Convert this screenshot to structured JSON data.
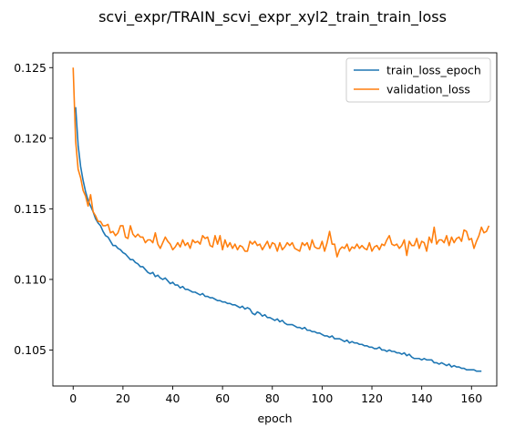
{
  "chart_data": {
    "type": "line",
    "title": "scvi_expr/TRAIN_scvi_expr_xyl2_train_train_loss",
    "xlabel": "epoch",
    "ylabel": "",
    "xlim": [
      -8.15,
      170.15
    ],
    "ylim": [
      0.10245,
      0.12605
    ],
    "xticks": [
      0,
      20,
      40,
      60,
      80,
      100,
      120,
      140,
      160
    ],
    "yticks": [
      0.105,
      0.11,
      0.115,
      0.12,
      0.125
    ],
    "grid": false,
    "legend": "top-right",
    "series": [
      {
        "name": "train_loss_epoch",
        "color": "#1f77b4",
        "x_start": 1,
        "values": [
          0.1222,
          0.1195,
          0.118,
          0.117,
          0.1162,
          0.1156,
          0.1152,
          0.1148,
          0.1143,
          0.114,
          0.1138,
          0.1134,
          0.1131,
          0.113,
          0.1127,
          0.1124,
          0.1124,
          0.1122,
          0.1121,
          0.1119,
          0.1118,
          0.1116,
          0.1114,
          0.1114,
          0.1112,
          0.1111,
          0.1109,
          0.1109,
          0.1107,
          0.1105,
          0.1104,
          0.1105,
          0.1102,
          0.1103,
          0.1101,
          0.11,
          0.1101,
          0.1099,
          0.1097,
          0.1098,
          0.1096,
          0.1096,
          0.1094,
          0.1095,
          0.1093,
          0.1093,
          0.1092,
          0.1091,
          0.1091,
          0.109,
          0.1089,
          0.109,
          0.1088,
          0.1088,
          0.1087,
          0.1087,
          0.1086,
          0.1085,
          0.1085,
          0.1084,
          0.1084,
          0.1083,
          0.1083,
          0.1082,
          0.1082,
          0.1081,
          0.108,
          0.1081,
          0.1079,
          0.108,
          0.1079,
          0.1076,
          0.1075,
          0.1077,
          0.1076,
          0.1074,
          0.1075,
          0.1073,
          0.1073,
          0.1072,
          0.1071,
          0.1072,
          0.107,
          0.1071,
          0.1069,
          0.1068,
          0.1068,
          0.1068,
          0.1067,
          0.1066,
          0.1066,
          0.1065,
          0.1066,
          0.1064,
          0.1064,
          0.1063,
          0.1063,
          0.1062,
          0.1062,
          0.1061,
          0.106,
          0.106,
          0.1059,
          0.106,
          0.1058,
          0.1058,
          0.1058,
          0.1057,
          0.1056,
          0.1057,
          0.1055,
          0.1056,
          0.1055,
          0.1055,
          0.1054,
          0.1054,
          0.1053,
          0.1053,
          0.1052,
          0.1052,
          0.1051,
          0.1051,
          0.1052,
          0.105,
          0.105,
          0.1049,
          0.105,
          0.1049,
          0.1049,
          0.1048,
          0.1048,
          0.1047,
          0.1048,
          0.1046,
          0.1047,
          0.1045,
          0.1044,
          0.1044,
          0.1044,
          0.1043,
          0.1044,
          0.1043,
          0.1043,
          0.1043,
          0.1041,
          0.1041,
          0.104,
          0.1041,
          0.104,
          0.1039,
          0.104,
          0.1038,
          0.1039,
          0.1038,
          0.1038,
          0.1037,
          0.1037,
          0.1036,
          0.1036,
          0.1036,
          0.1036,
          0.1035,
          0.1035,
          0.1035
        ]
      },
      {
        "name": "validation_loss",
        "color": "#ff7f0e",
        "x_start": 0,
        "values": [
          0.125,
          0.1198,
          0.1178,
          0.1172,
          0.1163,
          0.1159,
          0.1152,
          0.116,
          0.1148,
          0.1145,
          0.1141,
          0.1141,
          0.1138,
          0.1138,
          0.1139,
          0.1133,
          0.1134,
          0.1131,
          0.1133,
          0.1138,
          0.1138,
          0.113,
          0.1129,
          0.1138,
          0.1132,
          0.113,
          0.1132,
          0.113,
          0.113,
          0.1126,
          0.1128,
          0.1128,
          0.1126,
          0.1133,
          0.1125,
          0.1122,
          0.1126,
          0.113,
          0.1127,
          0.1125,
          0.1121,
          0.1123,
          0.1126,
          0.1123,
          0.1128,
          0.1124,
          0.1126,
          0.1122,
          0.1128,
          0.1126,
          0.1127,
          0.1125,
          0.1131,
          0.1129,
          0.113,
          0.1124,
          0.1123,
          0.1131,
          0.1125,
          0.1131,
          0.1121,
          0.1128,
          0.1123,
          0.1126,
          0.1122,
          0.1125,
          0.1121,
          0.1124,
          0.1123,
          0.112,
          0.112,
          0.1127,
          0.1125,
          0.1127,
          0.1124,
          0.1125,
          0.1121,
          0.1124,
          0.1127,
          0.1122,
          0.1126,
          0.1125,
          0.112,
          0.1126,
          0.1121,
          0.1123,
          0.1126,
          0.1124,
          0.1126,
          0.1122,
          0.1121,
          0.112,
          0.1126,
          0.1124,
          0.1126,
          0.1121,
          0.1128,
          0.1123,
          0.1122,
          0.1122,
          0.1127,
          0.112,
          0.1126,
          0.1134,
          0.1125,
          0.1125,
          0.1116,
          0.1121,
          0.1123,
          0.1122,
          0.1125,
          0.112,
          0.1123,
          0.1122,
          0.1125,
          0.1122,
          0.1124,
          0.1122,
          0.1121,
          0.1126,
          0.112,
          0.1123,
          0.1124,
          0.1121,
          0.1125,
          0.1124,
          0.1128,
          0.1131,
          0.1125,
          0.1124,
          0.1125,
          0.1122,
          0.1124,
          0.1128,
          0.1117,
          0.1127,
          0.1124,
          0.1124,
          0.1129,
          0.1122,
          0.1127,
          0.1126,
          0.112,
          0.113,
          0.1126,
          0.1137,
          0.1125,
          0.1128,
          0.1128,
          0.1126,
          0.1131,
          0.1124,
          0.113,
          0.1126,
          0.1129,
          0.113,
          0.1127,
          0.1135,
          0.1134,
          0.1128,
          0.1129,
          0.1122,
          0.1127,
          0.1131,
          0.1137,
          0.1133,
          0.1134,
          0.1138
        ]
      }
    ]
  }
}
